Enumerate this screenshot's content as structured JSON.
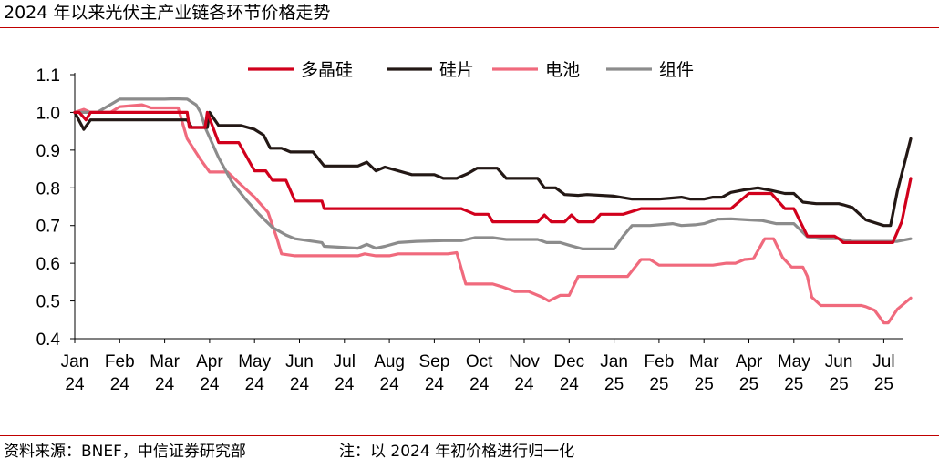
{
  "header": {
    "title": "2024 年以来光伏主产业链各环节价格走势"
  },
  "footer": {
    "source": "资料来源：BNEF，中信证券研究部",
    "note": "注：以 2024 年初价格进行归一化"
  },
  "colors": {
    "rule": "#c00000",
    "多晶硅": "#d1001c",
    "硅片": "#231815",
    "电池": "#f06a7d",
    "组件": "#8c8c8c"
  },
  "chart_data": {
    "type": "line",
    "title": "2024 年以来光伏主产业链各环节价格走势",
    "xlabel": "",
    "ylabel": "",
    "ylim": [
      0.4,
      1.1
    ],
    "yticks": [
      0.4,
      0.5,
      0.6,
      0.7,
      0.8,
      0.9,
      1.0,
      1.1
    ],
    "ytick_labels": [
      "0.4",
      "0.5",
      "0.6",
      "0.7",
      "0.8",
      "0.9",
      "1.0",
      "1.1"
    ],
    "xlim": [
      0,
      18.8
    ],
    "x_ticks": [
      {
        "label": "Jan",
        "year": "24"
      },
      {
        "label": "Feb",
        "year": "24"
      },
      {
        "label": "Mar",
        "year": "24"
      },
      {
        "label": "Apr",
        "year": "24"
      },
      {
        "label": "May",
        "year": "24"
      },
      {
        "label": "Jun",
        "year": "24"
      },
      {
        "label": "Jul",
        "year": "24"
      },
      {
        "label": "Aug",
        "year": "24"
      },
      {
        "label": "Sep",
        "year": "24"
      },
      {
        "label": "Oct",
        "year": "24"
      },
      {
        "label": "Nov",
        "year": "24"
      },
      {
        "label": "Dec",
        "year": "24"
      },
      {
        "label": "Jan",
        "year": "25"
      },
      {
        "label": "Feb",
        "year": "25"
      },
      {
        "label": "Mar",
        "year": "25"
      },
      {
        "label": "Apr",
        "year": "25"
      },
      {
        "label": "May",
        "year": "25"
      },
      {
        "label": "Jun",
        "year": "25"
      },
      {
        "label": "Jul",
        "year": "25"
      }
    ],
    "grid": false,
    "legend_position": "top",
    "series": [
      {
        "name": "多晶硅",
        "points": [
          [
            0,
            1.0
          ],
          [
            0.1,
            1.0
          ],
          [
            0.25,
            0.98
          ],
          [
            0.35,
            1.0
          ],
          [
            1.0,
            1.0
          ],
          [
            2.0,
            1.0
          ],
          [
            2.5,
            1.0
          ],
          [
            2.55,
            0.96
          ],
          [
            2.9,
            0.96
          ],
          [
            2.95,
            1.0
          ],
          [
            3.2,
            0.92
          ],
          [
            3.65,
            0.92
          ],
          [
            4.0,
            0.845
          ],
          [
            4.25,
            0.845
          ],
          [
            4.4,
            0.82
          ],
          [
            4.7,
            0.82
          ],
          [
            4.9,
            0.765
          ],
          [
            5.5,
            0.765
          ],
          [
            5.55,
            0.745
          ],
          [
            6.3,
            0.745
          ],
          [
            7.5,
            0.745
          ],
          [
            8.2,
            0.745
          ],
          [
            8.6,
            0.745
          ],
          [
            8.9,
            0.73
          ],
          [
            9.2,
            0.73
          ],
          [
            9.3,
            0.71
          ],
          [
            10.0,
            0.71
          ],
          [
            10.3,
            0.71
          ],
          [
            10.45,
            0.728
          ],
          [
            10.6,
            0.71
          ],
          [
            10.9,
            0.71
          ],
          [
            11.05,
            0.728
          ],
          [
            11.2,
            0.71
          ],
          [
            11.55,
            0.71
          ],
          [
            11.7,
            0.73
          ],
          [
            12.2,
            0.73
          ],
          [
            12.6,
            0.745
          ],
          [
            13.4,
            0.745
          ],
          [
            14.2,
            0.745
          ],
          [
            14.6,
            0.745
          ],
          [
            14.8,
            0.765
          ],
          [
            15.0,
            0.785
          ],
          [
            15.5,
            0.785
          ],
          [
            15.8,
            0.745
          ],
          [
            16.0,
            0.745
          ],
          [
            16.3,
            0.672
          ],
          [
            16.9,
            0.672
          ],
          [
            17.0,
            0.665
          ],
          [
            17.1,
            0.655
          ],
          [
            18.0,
            0.655
          ],
          [
            18.2,
            0.655
          ],
          [
            18.4,
            0.71
          ],
          [
            18.6,
            0.825
          ]
        ]
      },
      {
        "name": "硅片",
        "points": [
          [
            0,
            1.0
          ],
          [
            0.2,
            0.955
          ],
          [
            0.35,
            0.98
          ],
          [
            2.0,
            0.98
          ],
          [
            2.5,
            0.98
          ],
          [
            2.6,
            0.96
          ],
          [
            2.95,
            0.96
          ],
          [
            3.0,
            1.0
          ],
          [
            3.2,
            0.965
          ],
          [
            3.7,
            0.965
          ],
          [
            4.0,
            0.955
          ],
          [
            4.2,
            0.94
          ],
          [
            4.35,
            0.905
          ],
          [
            4.6,
            0.905
          ],
          [
            4.8,
            0.895
          ],
          [
            5.3,
            0.895
          ],
          [
            5.55,
            0.858
          ],
          [
            6.3,
            0.858
          ],
          [
            6.5,
            0.868
          ],
          [
            6.7,
            0.845
          ],
          [
            6.9,
            0.855
          ],
          [
            7.5,
            0.835
          ],
          [
            8.0,
            0.835
          ],
          [
            8.2,
            0.825
          ],
          [
            8.5,
            0.825
          ],
          [
            8.75,
            0.838
          ],
          [
            8.95,
            0.852
          ],
          [
            9.4,
            0.852
          ],
          [
            9.6,
            0.825
          ],
          [
            10.1,
            0.825
          ],
          [
            10.3,
            0.825
          ],
          [
            10.45,
            0.8
          ],
          [
            10.7,
            0.8
          ],
          [
            10.9,
            0.782
          ],
          [
            11.2,
            0.78
          ],
          [
            11.4,
            0.782
          ],
          [
            12.0,
            0.778
          ],
          [
            12.4,
            0.77
          ],
          [
            13.0,
            0.77
          ],
          [
            13.5,
            0.775
          ],
          [
            13.7,
            0.77
          ],
          [
            14.0,
            0.77
          ],
          [
            14.2,
            0.775
          ],
          [
            14.4,
            0.775
          ],
          [
            14.6,
            0.788
          ],
          [
            14.9,
            0.795
          ],
          [
            15.2,
            0.8
          ],
          [
            15.5,
            0.793
          ],
          [
            15.8,
            0.785
          ],
          [
            16.0,
            0.785
          ],
          [
            16.2,
            0.762
          ],
          [
            16.5,
            0.758
          ],
          [
            17.0,
            0.758
          ],
          [
            17.1,
            0.755
          ],
          [
            17.3,
            0.748
          ],
          [
            17.6,
            0.715
          ],
          [
            18.0,
            0.7
          ],
          [
            18.15,
            0.7
          ],
          [
            18.3,
            0.79
          ],
          [
            18.6,
            0.93
          ]
        ]
      },
      {
        "name": "电池",
        "points": [
          [
            0,
            1.0
          ],
          [
            0.2,
            1.008
          ],
          [
            0.35,
            1.0
          ],
          [
            0.8,
            1.0
          ],
          [
            1.0,
            1.015
          ],
          [
            1.5,
            1.02
          ],
          [
            1.7,
            1.012
          ],
          [
            2.3,
            1.012
          ],
          [
            2.5,
            0.93
          ],
          [
            2.8,
            0.875
          ],
          [
            3.0,
            0.842
          ],
          [
            3.4,
            0.842
          ],
          [
            3.7,
            0.808
          ],
          [
            4.0,
            0.775
          ],
          [
            4.3,
            0.735
          ],
          [
            4.5,
            0.665
          ],
          [
            4.6,
            0.625
          ],
          [
            4.9,
            0.62
          ],
          [
            5.5,
            0.62
          ],
          [
            6.3,
            0.62
          ],
          [
            6.45,
            0.625
          ],
          [
            6.7,
            0.62
          ],
          [
            7.0,
            0.62
          ],
          [
            7.2,
            0.625
          ],
          [
            8.3,
            0.625
          ],
          [
            8.5,
            0.628
          ],
          [
            8.7,
            0.545
          ],
          [
            9.3,
            0.545
          ],
          [
            9.5,
            0.538
          ],
          [
            9.8,
            0.525
          ],
          [
            10.1,
            0.525
          ],
          [
            10.4,
            0.51
          ],
          [
            10.55,
            0.5
          ],
          [
            10.8,
            0.515
          ],
          [
            11.0,
            0.515
          ],
          [
            11.2,
            0.565
          ],
          [
            12.0,
            0.565
          ],
          [
            12.3,
            0.565
          ],
          [
            12.6,
            0.61
          ],
          [
            12.8,
            0.61
          ],
          [
            13.0,
            0.595
          ],
          [
            13.5,
            0.595
          ],
          [
            14.2,
            0.595
          ],
          [
            14.5,
            0.6
          ],
          [
            14.7,
            0.6
          ],
          [
            14.9,
            0.61
          ],
          [
            15.1,
            0.612
          ],
          [
            15.35,
            0.665
          ],
          [
            15.55,
            0.665
          ],
          [
            15.75,
            0.615
          ],
          [
            15.95,
            0.59
          ],
          [
            16.2,
            0.59
          ],
          [
            16.3,
            0.565
          ],
          [
            16.4,
            0.51
          ],
          [
            16.6,
            0.488
          ],
          [
            17.0,
            0.488
          ],
          [
            17.5,
            0.488
          ],
          [
            17.6,
            0.485
          ],
          [
            17.8,
            0.475
          ],
          [
            18.0,
            0.442
          ],
          [
            18.1,
            0.442
          ],
          [
            18.3,
            0.478
          ],
          [
            18.6,
            0.508
          ]
        ]
      },
      {
        "name": "组件",
        "points": [
          [
            0,
            1.0
          ],
          [
            0.5,
            1.0
          ],
          [
            1.0,
            1.035
          ],
          [
            1.5,
            1.035
          ],
          [
            2.0,
            1.035
          ],
          [
            2.2,
            1.036
          ],
          [
            2.5,
            1.035
          ],
          [
            2.7,
            1.02
          ],
          [
            2.8,
            1.0
          ],
          [
            2.9,
            0.96
          ],
          [
            3.2,
            0.88
          ],
          [
            3.5,
            0.815
          ],
          [
            3.8,
            0.77
          ],
          [
            4.1,
            0.73
          ],
          [
            4.4,
            0.695
          ],
          [
            4.7,
            0.675
          ],
          [
            4.9,
            0.665
          ],
          [
            5.5,
            0.655
          ],
          [
            5.55,
            0.645
          ],
          [
            6.3,
            0.64
          ],
          [
            6.5,
            0.65
          ],
          [
            6.7,
            0.64
          ],
          [
            6.9,
            0.645
          ],
          [
            7.2,
            0.655
          ],
          [
            7.6,
            0.658
          ],
          [
            8.2,
            0.66
          ],
          [
            8.6,
            0.66
          ],
          [
            8.9,
            0.668
          ],
          [
            9.3,
            0.668
          ],
          [
            9.6,
            0.663
          ],
          [
            10.0,
            0.663
          ],
          [
            10.3,
            0.663
          ],
          [
            10.5,
            0.655
          ],
          [
            10.8,
            0.655
          ],
          [
            11.0,
            0.648
          ],
          [
            11.3,
            0.638
          ],
          [
            11.6,
            0.638
          ],
          [
            11.8,
            0.638
          ],
          [
            12.0,
            0.638
          ],
          [
            12.2,
            0.672
          ],
          [
            12.4,
            0.7
          ],
          [
            12.8,
            0.7
          ],
          [
            13.0,
            0.702
          ],
          [
            13.3,
            0.705
          ],
          [
            13.5,
            0.7
          ],
          [
            13.8,
            0.702
          ],
          [
            14.0,
            0.705
          ],
          [
            14.3,
            0.717
          ],
          [
            14.6,
            0.718
          ],
          [
            15.0,
            0.715
          ],
          [
            15.3,
            0.713
          ],
          [
            15.6,
            0.705
          ],
          [
            16.0,
            0.705
          ],
          [
            16.3,
            0.67
          ],
          [
            16.6,
            0.665
          ],
          [
            17.0,
            0.665
          ],
          [
            17.3,
            0.658
          ],
          [
            17.6,
            0.658
          ],
          [
            18.0,
            0.658
          ],
          [
            18.3,
            0.658
          ],
          [
            18.6,
            0.665
          ]
        ]
      }
    ]
  }
}
